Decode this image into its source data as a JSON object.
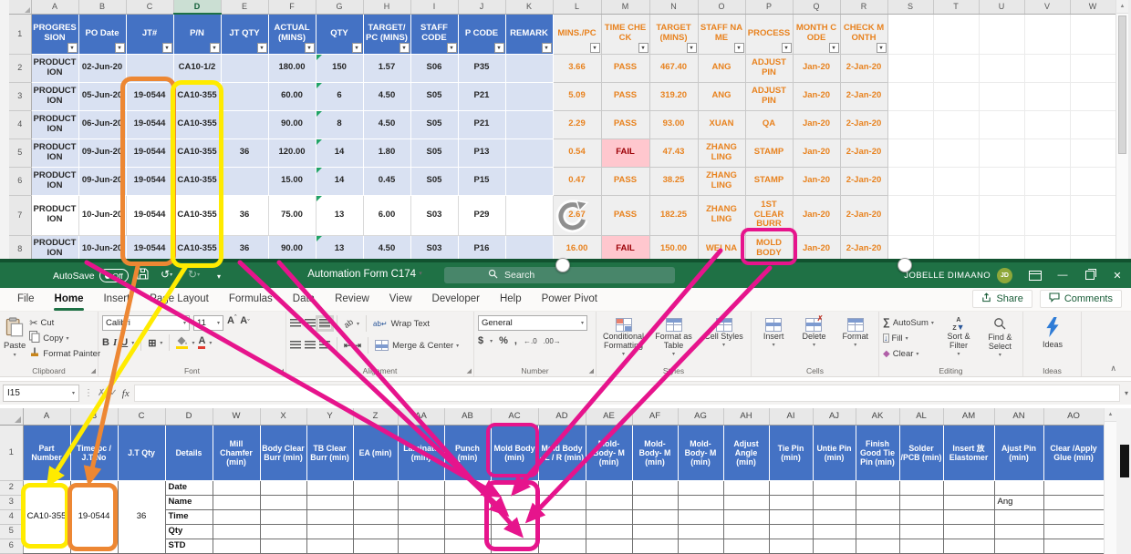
{
  "top_sheet": {
    "col_letters": [
      "A",
      "B",
      "C",
      "D",
      "E",
      "F",
      "G",
      "H",
      "I",
      "J",
      "K",
      "L",
      "M",
      "N",
      "O",
      "P",
      "Q",
      "R",
      "S",
      "T",
      "U",
      "V",
      "W"
    ],
    "selected_column": "D",
    "first_row_number": "1",
    "blue_headers": [
      "PROGRESSION",
      "PO Date",
      "JT#",
      "P/N",
      "JT QTY",
      "ACTUAL (MINS)",
      "QTY",
      "TARGET/ PC (MINS)",
      "STAFF CODE",
      "P CODE",
      "REMARK"
    ],
    "orange_headers": [
      "MINS./PC",
      "TIME CHECK",
      "TARGET (MINS)",
      "STAFF NAME",
      "PROCESS",
      "MONTH CODE",
      "CHECK MONTH"
    ],
    "rows": [
      {
        "n": "2",
        "cells": [
          "PRODUCTION",
          "02-Jun-20",
          "",
          "CA10-1/2",
          "",
          "180.00",
          "150",
          "1.57",
          "S06",
          "P35",
          "",
          "3.66",
          "PASS",
          "467.40",
          "ANG",
          "ADJUST PIN",
          "Jan-20",
          "2-Jan-20"
        ]
      },
      {
        "n": "3",
        "cells": [
          "PRODUCTION",
          "05-Jun-20",
          "19-0544",
          "CA10-355",
          "",
          "60.00",
          "6",
          "4.50",
          "S05",
          "P21",
          "",
          "5.09",
          "PASS",
          "319.20",
          "ANG",
          "ADJUST PIN",
          "Jan-20",
          "2-Jan-20"
        ]
      },
      {
        "n": "4",
        "cells": [
          "PRODUCTION",
          "06-Jun-20",
          "19-0544",
          "CA10-355",
          "",
          "90.00",
          "8",
          "4.50",
          "S05",
          "P21",
          "",
          "2.29",
          "PASS",
          "93.00",
          "XUAN",
          "QA",
          "Jan-20",
          "2-Jan-20"
        ]
      },
      {
        "n": "5",
        "cells": [
          "PRODUCTION",
          "09-Jun-20",
          "19-0544",
          "CA10-355",
          "36",
          "120.00",
          "14",
          "1.80",
          "S05",
          "P13",
          "",
          "0.54",
          "FAIL",
          "47.43",
          "ZHANG LING",
          "STAMP",
          "Jan-20",
          "2-Jan-20"
        ]
      },
      {
        "n": "6",
        "cells": [
          "PRODUCTION",
          "09-Jun-20",
          "19-0544",
          "CA10-355",
          "",
          "15.00",
          "14",
          "0.45",
          "S05",
          "P15",
          "",
          "0.47",
          "PASS",
          "38.25",
          "ZHANG LING",
          "STAMP",
          "Jan-20",
          "2-Jan-20"
        ]
      },
      {
        "n": "7",
        "cells": [
          "PRODUCTION",
          "10-Jun-20",
          "19-0544",
          "CA10-355",
          "36",
          "75.00",
          "13",
          "6.00",
          "S03",
          "P29",
          "",
          "2.67",
          "PASS",
          "182.25",
          "ZHANG LING",
          "1ST CLEAR BURR",
          "Jan-20",
          "2-Jan-20"
        ]
      },
      {
        "n": "8",
        "cells": [
          "PRODUCTION",
          "10-Jun-20",
          "19-0544",
          "CA10-355",
          "36",
          "90.00",
          "13",
          "4.50",
          "S03",
          "P16",
          "",
          "16.00",
          "FAIL",
          "150.00",
          "WEI NA",
          "MOLD BODY",
          "Jan-20",
          "2-Jan-20"
        ]
      }
    ]
  },
  "titlebar": {
    "autosave": "AutoSave",
    "autosave_state": "Off",
    "title": "Automation Form C174",
    "search": "Search",
    "user": "JOBELLE DIMAANO",
    "avatar": "JD"
  },
  "menu": {
    "tabs": [
      "File",
      "Home",
      "Insert",
      "Page Layout",
      "Formulas",
      "Data",
      "Review",
      "View",
      "Developer",
      "Help",
      "Power Pivot"
    ],
    "active": "Home",
    "share": "Share",
    "comments": "Comments"
  },
  "ribbon": {
    "paste": "Paste",
    "cut": "Cut",
    "copy": "Copy",
    "format_painter": "Format Painter",
    "clipboard": "Clipboard",
    "font_name": "Calibri",
    "font_size": "11",
    "font": "Font",
    "wrap_text": "Wrap Text",
    "merge_center": "Merge & Center",
    "alignment": "Alignment",
    "number_format": "General",
    "number": "Number",
    "conditional_formatting": "Conditional Formatting",
    "format_as_table": "Format as Table",
    "cell_styles": "Cell Styles",
    "styles": "Styles",
    "insert": "Insert",
    "delete": "Delete",
    "format": "Format",
    "cells": "Cells",
    "autosum": "AutoSum",
    "fill": "Fill",
    "clear": "Clear",
    "sort_filter": "Sort & Filter",
    "find_select": "Find & Select",
    "editing": "Editing",
    "ideas": "Ideas",
    "ideas_group": "Ideas"
  },
  "formula_bar": {
    "name_box": "I15",
    "fx": "fx",
    "value": ""
  },
  "bottom_sheet": {
    "col_letters": [
      "A",
      "B",
      "C",
      "D",
      "W",
      "X",
      "Y",
      "Z",
      "AA",
      "AB",
      "AC",
      "AD",
      "AE",
      "AF",
      "AG",
      "AH",
      "AI",
      "AJ",
      "AK",
      "AL",
      "AM",
      "AN",
      "AO"
    ],
    "headers": [
      "Part Number",
      "Time/pc / J.T No",
      "J.T Qty",
      "Details",
      "Mill Chamfer (min)",
      "Body Clear Burr (min)",
      "TB Clear Burr (min)",
      "EA (min)",
      "Laminate (min)",
      "Punch (min)",
      "Mold Body (min)",
      "Mold Body - L / R (min)",
      "Mold- Body- M (min)",
      "Mold- Body- M (min)",
      "Mold- Body- M (min)",
      "Adjust Angle (min)",
      "Tie Pin (min)",
      "Untie Pin (min)",
      "Finish Good Tie Pin (min)",
      "Solder /PCB (min)",
      "Insert 放 Elastomer",
      "Ajust Pin (min)",
      "Clear /Apply Glue (min)"
    ],
    "row_numbers": [
      "1",
      "2",
      "3",
      "4",
      "5",
      "6"
    ],
    "part_number": "CA10-355",
    "time_jt_no": "19-0544",
    "jt_qty": "36",
    "row_labels": [
      "Date",
      "Name",
      "Time",
      "Qty",
      "STD"
    ],
    "name_row_an_value": "Ang"
  },
  "annotations": {
    "highlight_yellow": "#FFEB00",
    "highlight_orange": "#ED8733",
    "highlight_magenta": "#E6148C",
    "excel_green": "#1F7145",
    "header_blue": "#4472C4",
    "row_blue": "#D9E1F2",
    "fail_bg": "#FFC7CE",
    "orange_text": "#E8821E"
  }
}
